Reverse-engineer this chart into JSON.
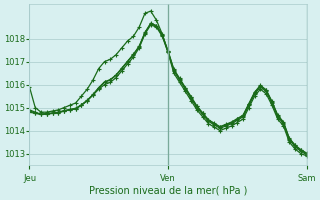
{
  "title": "",
  "xlabel": "Pression niveau de la mer( hPa )",
  "background_color": "#d8f0f0",
  "plot_bg_color": "#d8f0f0",
  "grid_color": "#aacccc",
  "line_color": "#1a6b1a",
  "tick_label_color": "#1a6b1a",
  "axis_label_color": "#1a6b1a",
  "ylim": [
    1012.5,
    1019.5
  ],
  "yticks": [
    1013,
    1014,
    1015,
    1016,
    1017,
    1018
  ],
  "day_labels": [
    "Jeu",
    "Ven",
    "Sam"
  ],
  "day_positions": [
    0,
    24,
    48
  ],
  "series": {
    "line1": [
      1015.9,
      1015.0,
      1014.8,
      1014.8,
      1014.85,
      1014.9,
      1015.0,
      1015.1,
      1015.2,
      1015.5,
      1015.8,
      1016.2,
      1016.7,
      1017.0,
      1017.1,
      1017.3,
      1017.6,
      1017.9,
      1018.1,
      1018.5,
      1019.1,
      1019.2,
      1018.8,
      1018.2,
      1017.4,
      1016.5,
      1016.1,
      1015.7,
      1015.3,
      1014.9,
      1014.6,
      1014.3,
      1014.15,
      1014.0,
      1014.1,
      1014.2,
      1014.35,
      1014.5,
      1015.0,
      1015.5,
      1015.8,
      1015.6,
      1015.1,
      1014.5,
      1014.2,
      1013.5,
      1013.2,
      1013.0,
      1012.9
    ],
    "line2": [
      1014.8,
      1014.75,
      1014.7,
      1014.72,
      1014.75,
      1014.78,
      1014.85,
      1014.9,
      1014.95,
      1015.1,
      1015.3,
      1015.55,
      1015.8,
      1016.0,
      1016.1,
      1016.3,
      1016.6,
      1016.9,
      1017.2,
      1017.6,
      1018.2,
      1018.6,
      1018.5,
      1018.1,
      1017.4,
      1016.6,
      1016.2,
      1015.8,
      1015.4,
      1015.0,
      1014.7,
      1014.4,
      1014.25,
      1014.1,
      1014.2,
      1014.3,
      1014.45,
      1014.6,
      1015.1,
      1015.6,
      1015.9,
      1015.7,
      1015.2,
      1014.6,
      1014.3,
      1013.6,
      1013.3,
      1013.1,
      1012.95
    ],
    "line3": [
      1014.9,
      1014.8,
      1014.7,
      1014.72,
      1014.75,
      1014.78,
      1014.85,
      1014.9,
      1014.95,
      1015.1,
      1015.3,
      1015.55,
      1015.85,
      1016.1,
      1016.2,
      1016.4,
      1016.7,
      1017.0,
      1017.3,
      1017.65,
      1018.25,
      1018.65,
      1018.55,
      1018.15,
      1017.45,
      1016.65,
      1016.25,
      1015.85,
      1015.45,
      1015.05,
      1014.75,
      1014.45,
      1014.3,
      1014.15,
      1014.25,
      1014.35,
      1014.5,
      1014.65,
      1015.15,
      1015.65,
      1015.95,
      1015.75,
      1015.25,
      1014.65,
      1014.35,
      1013.65,
      1013.35,
      1013.15,
      1013.0
    ],
    "line4": [
      1014.85,
      1014.77,
      1014.72,
      1014.74,
      1014.77,
      1014.8,
      1014.87,
      1014.92,
      1014.97,
      1015.12,
      1015.32,
      1015.57,
      1015.87,
      1016.12,
      1016.22,
      1016.42,
      1016.72,
      1017.02,
      1017.32,
      1017.67,
      1018.27,
      1018.67,
      1018.57,
      1018.17,
      1017.47,
      1016.67,
      1016.27,
      1015.87,
      1015.47,
      1015.07,
      1014.77,
      1014.47,
      1014.32,
      1014.17,
      1014.27,
      1014.37,
      1014.52,
      1014.67,
      1015.17,
      1015.67,
      1015.97,
      1015.77,
      1015.27,
      1014.67,
      1014.37,
      1013.67,
      1013.37,
      1013.17,
      1013.02
    ]
  }
}
